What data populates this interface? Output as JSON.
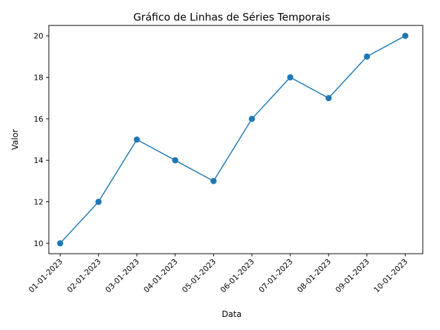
{
  "chart_data": {
    "type": "line",
    "title": "Gráfico de Linhas de Séries Temporais",
    "xlabel": "Data",
    "ylabel": "Valor",
    "categories": [
      "01-01-2023",
      "02-01-2023",
      "03-01-2023",
      "04-01-2023",
      "05-01-2023",
      "06-01-2023",
      "07-01-2023",
      "08-01-2023",
      "09-01-2023",
      "10-01-2023"
    ],
    "series": [
      {
        "values": [
          10,
          12,
          15,
          14,
          13,
          16,
          18,
          17,
          19,
          20
        ]
      }
    ],
    "ylim": [
      9.5,
      20.5
    ],
    "yticks": [
      10,
      12,
      14,
      16,
      18,
      20
    ],
    "grid": false,
    "marker": "circle",
    "color": "#1f77b4"
  }
}
